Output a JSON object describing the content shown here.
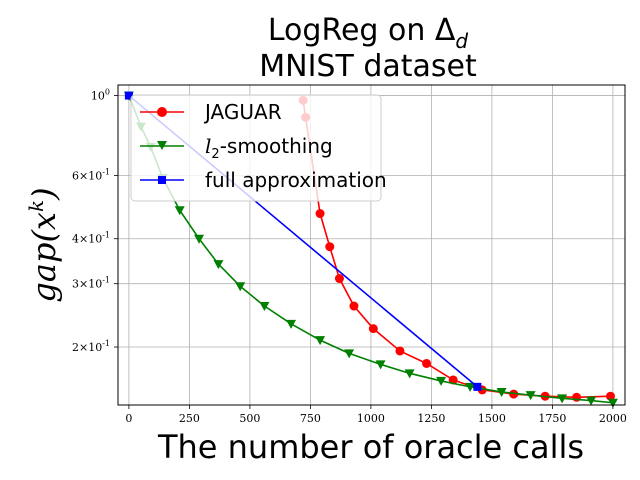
{
  "chart_data": {
    "type": "line",
    "title_line1": "LogReg on Δ",
    "title_sub": "d",
    "title_line2": "MNIST dataset",
    "xlabel": "The number of oracle calls",
    "ylabel": "gap(x",
    "ylabel_sup": "k",
    "ylabel_end": ")",
    "yscale": "log",
    "xlim": [
      -45,
      2050
    ],
    "ylim": [
      0.138,
      1.07
    ],
    "x_ticks": [
      0,
      250,
      500,
      750,
      1000,
      1250,
      1500,
      1750,
      2000
    ],
    "x_tick_labels": [
      "0",
      "250",
      "500",
      "750",
      "1000",
      "1250",
      "1500",
      "1750",
      "2000"
    ],
    "y_ticks": [
      1.0,
      0.6,
      0.4,
      0.3,
      0.2
    ],
    "y_tick_labels": [
      "10^0",
      "6×10^-1",
      "4×10^-1",
      "3×10^-1",
      "2×10^-1"
    ],
    "grid": true,
    "legend_position": "upper left",
    "series": [
      {
        "name": "JAGUAR",
        "color": "#ff0000",
        "marker": "circle",
        "x": [
          720,
          730,
          790,
          830,
          870,
          930,
          1010,
          1120,
          1230,
          1340,
          1460,
          1590,
          1720,
          1850,
          1990
        ],
        "y": [
          0.97,
          0.87,
          0.47,
          0.38,
          0.31,
          0.26,
          0.225,
          0.195,
          0.18,
          0.162,
          0.152,
          0.148,
          0.146,
          0.145,
          0.146
        ]
      },
      {
        "name": "l2-smoothing",
        "name_base": "l",
        "name_sub": "2",
        "name_rest": "-smoothing",
        "color": "#008000",
        "marker": "triangle_down",
        "x": [
          0,
          50,
          90,
          140,
          210,
          290,
          370,
          460,
          560,
          670,
          790,
          910,
          1040,
          1160,
          1290,
          1410,
          1540,
          1660,
          1790,
          1910,
          2000
        ],
        "y": [
          1.0,
          0.82,
          0.72,
          0.59,
          0.48,
          0.4,
          0.34,
          0.295,
          0.26,
          0.232,
          0.209,
          0.192,
          0.179,
          0.169,
          0.161,
          0.155,
          0.15,
          0.147,
          0.144,
          0.142,
          0.14
        ]
      },
      {
        "name": "full approximation",
        "color": "#0000ff",
        "marker": "square",
        "x": [
          0,
          1440
        ],
        "y": [
          1.0,
          0.155
        ]
      }
    ]
  }
}
